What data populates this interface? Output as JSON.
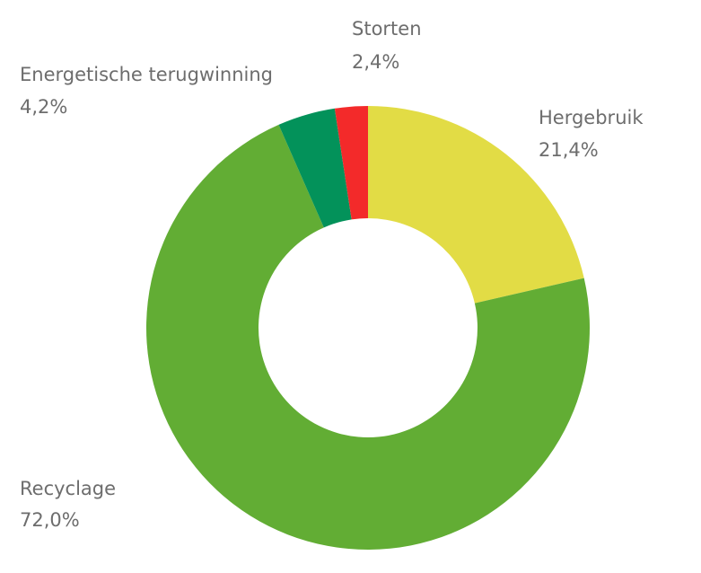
{
  "chart_data": {
    "type": "pie",
    "categories": [
      "Hergebruik",
      "Recyclage",
      "Energetische terugwinning",
      "Storten"
    ],
    "values": [
      21.4,
      72.0,
      4.2,
      2.4
    ],
    "value_labels": [
      "21,4%",
      "72,0%",
      "4,2%",
      "2,4%"
    ],
    "colors": [
      "#e2dc45",
      "#62ad34",
      "#03925a",
      "#f32a2a"
    ]
  }
}
